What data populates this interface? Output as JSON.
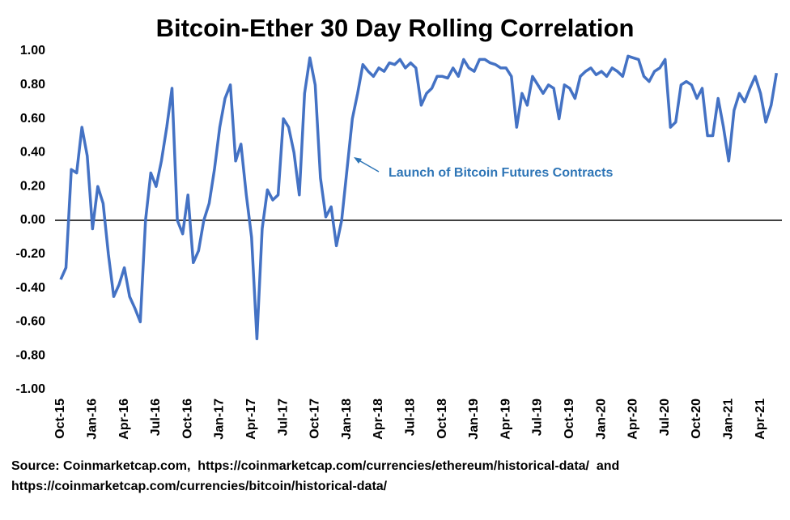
{
  "chart_data": {
    "type": "line",
    "title": "Bitcoin-Ether 30 Day Rolling Correlation",
    "annotation": "Launch of Bitcoin Futures Contracts",
    "source": [
      "Source: Coinmarketcap.com,  https://coinmarketcap.com/currencies/ethereum/historical-data/  and",
      "https://coinmarketcap.com/currencies/bitcoin/historical-data/"
    ],
    "color": "#4472c4",
    "grid": false,
    "ylim": [
      -1,
      1
    ],
    "yticks": [
      {
        "value": 1,
        "label": "1.00"
      },
      {
        "value": 0.8,
        "label": "0.80"
      },
      {
        "value": 0.6,
        "label": "0.60"
      },
      {
        "value": 0.4,
        "label": "0.40"
      },
      {
        "value": 0.2,
        "label": "0.20"
      },
      {
        "value": 0,
        "label": "0.00"
      },
      {
        "value": -0.2,
        "label": "-0.20"
      },
      {
        "value": -0.4,
        "label": "-0.40"
      },
      {
        "value": -0.6,
        "label": "-0.60"
      },
      {
        "value": -0.8,
        "label": "-0.80"
      },
      {
        "value": -1,
        "label": "-1.00"
      }
    ],
    "categories": [
      "Oct-15",
      null,
      null,
      null,
      null,
      null,
      "Jan-16",
      null,
      null,
      null,
      null,
      null,
      "Apr-16",
      null,
      null,
      null,
      null,
      null,
      "Jul-16",
      null,
      null,
      null,
      null,
      null,
      "Oct-16",
      null,
      null,
      null,
      null,
      null,
      "Jan-17",
      null,
      null,
      null,
      null,
      null,
      "Apr-17",
      null,
      null,
      null,
      null,
      null,
      "Jul-17",
      null,
      null,
      null,
      null,
      null,
      "Oct-17",
      null,
      null,
      null,
      null,
      null,
      "Jan-18",
      null,
      null,
      null,
      null,
      null,
      "Apr-18",
      null,
      null,
      null,
      null,
      null,
      "Jul-18",
      null,
      null,
      null,
      null,
      null,
      "Oct-18",
      null,
      null,
      null,
      null,
      null,
      "Jan-19",
      null,
      null,
      null,
      null,
      null,
      "Apr-19",
      null,
      null,
      null,
      null,
      null,
      "Jul-19",
      null,
      null,
      null,
      null,
      null,
      "Oct-19",
      null,
      null,
      null,
      null,
      null,
      "Jan-20",
      null,
      null,
      null,
      null,
      null,
      "Apr-20",
      null,
      null,
      null,
      null,
      null,
      "Jul-20",
      null,
      null,
      null,
      null,
      null,
      "Oct-20",
      null,
      null,
      null,
      null,
      null,
      "Jan-21",
      null,
      null,
      null,
      null,
      null,
      "Apr-21",
      null,
      null,
      null
    ],
    "values": [
      -0.35,
      -0.28,
      0.3,
      0.28,
      0.55,
      0.38,
      -0.05,
      0.2,
      0.1,
      -0.2,
      -0.45,
      -0.38,
      -0.28,
      -0.45,
      -0.52,
      -0.6,
      0.0,
      0.28,
      0.2,
      0.35,
      0.55,
      0.78,
      0.0,
      -0.08,
      0.15,
      -0.25,
      -0.18,
      0.0,
      0.1,
      0.3,
      0.55,
      0.72,
      0.8,
      0.35,
      0.45,
      0.15,
      -0.1,
      -0.7,
      -0.05,
      0.18,
      0.12,
      0.15,
      0.6,
      0.55,
      0.4,
      0.15,
      0.75,
      0.96,
      0.8,
      0.25,
      0.02,
      0.08,
      -0.15,
      0.0,
      0.3,
      0.6,
      0.75,
      0.92,
      0.88,
      0.85,
      0.9,
      0.88,
      0.93,
      0.92,
      0.95,
      0.9,
      0.93,
      0.9,
      0.68,
      0.75,
      0.78,
      0.85,
      0.85,
      0.84,
      0.9,
      0.85,
      0.95,
      0.9,
      0.88,
      0.95,
      0.95,
      0.93,
      0.92,
      0.9,
      0.9,
      0.85,
      0.55,
      0.75,
      0.68,
      0.85,
      0.8,
      0.75,
      0.8,
      0.78,
      0.6,
      0.8,
      0.78,
      0.72,
      0.85,
      0.88,
      0.9,
      0.86,
      0.88,
      0.85,
      0.9,
      0.88,
      0.85,
      0.97,
      0.96,
      0.95,
      0.85,
      0.82,
      0.88,
      0.9,
      0.95,
      0.55,
      0.58,
      0.8,
      0.82,
      0.8,
      0.72,
      0.78,
      0.5,
      0.5,
      0.72,
      0.55,
      0.35,
      0.65,
      0.75,
      0.7,
      0.78,
      0.85,
      0.75,
      0.58,
      0.68,
      0.87
    ]
  }
}
